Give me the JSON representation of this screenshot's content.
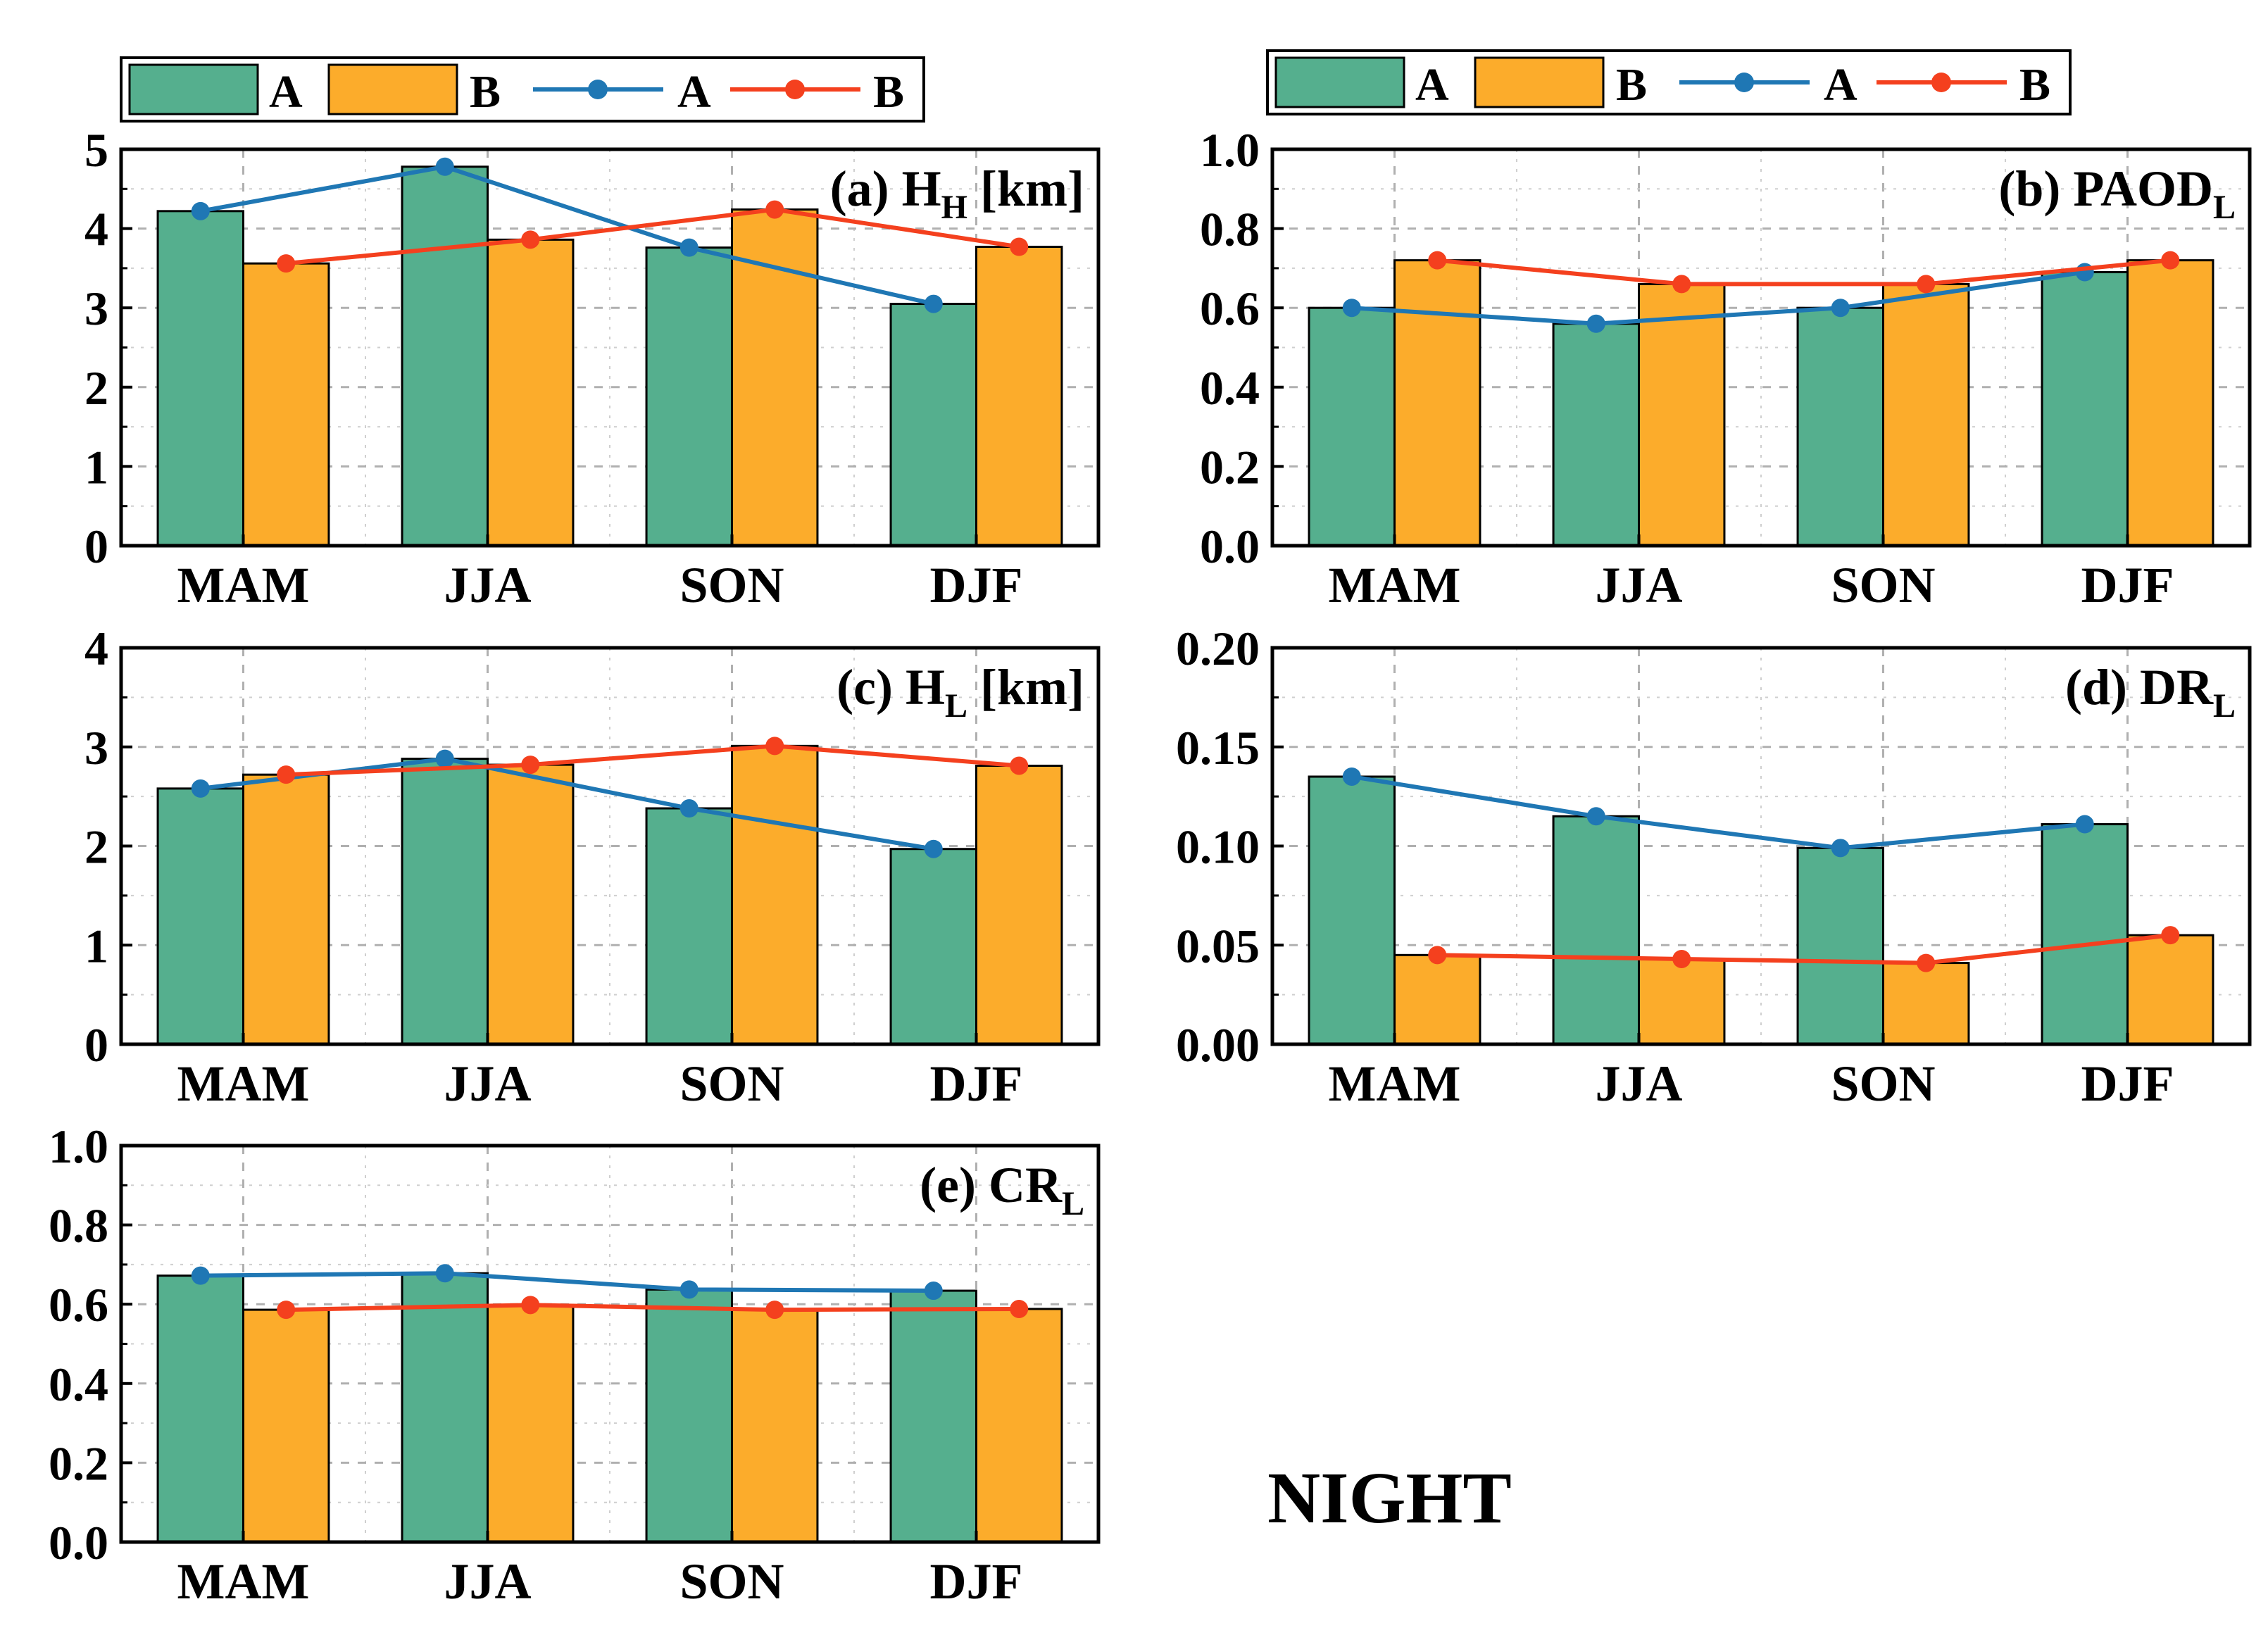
{
  "figure_label": "NIGHT",
  "colors": {
    "bar_a": "#55AF8E",
    "bar_b": "#FCAC2B",
    "line_a": "#1F77B4",
    "line_b": "#F4401E",
    "grid": "#b0b0b0"
  },
  "legend": {
    "bar_a": "A",
    "bar_b": "B",
    "line_a": "A",
    "line_b": "B"
  },
  "chart_data": [
    {
      "id": "a",
      "type": "bar",
      "panel_label": "(a)",
      "var_main": "H",
      "var_sub": "H",
      "unit": "[km]",
      "categories": [
        "MAM",
        "JJA",
        "SON",
        "DJF"
      ],
      "ylim": [
        0,
        5
      ],
      "yticks": [
        0,
        1,
        2,
        3,
        4,
        5
      ],
      "ytick_labels": [
        "0",
        "1",
        "2",
        "3",
        "4",
        "5"
      ],
      "series": [
        {
          "name": "A",
          "kind": "bar",
          "values": [
            4.22,
            4.78,
            3.76,
            3.05
          ]
        },
        {
          "name": "B",
          "kind": "bar",
          "values": [
            3.56,
            3.86,
            4.24,
            3.77
          ]
        },
        {
          "name": "A",
          "kind": "line",
          "values": [
            4.22,
            4.78,
            3.76,
            3.05
          ]
        },
        {
          "name": "B",
          "kind": "line",
          "values": [
            3.56,
            3.86,
            4.24,
            3.77
          ]
        }
      ]
    },
    {
      "id": "b",
      "type": "bar",
      "panel_label": "(b)",
      "var_main": "PAOD",
      "var_sub": "L",
      "unit": "",
      "categories": [
        "MAM",
        "JJA",
        "SON",
        "DJF"
      ],
      "ylim": [
        0,
        1.0
      ],
      "yticks": [
        0,
        0.2,
        0.4,
        0.6,
        0.8,
        1.0
      ],
      "ytick_labels": [
        "0.0",
        "0.2",
        "0.4",
        "0.6",
        "0.8",
        "1.0"
      ],
      "series": [
        {
          "name": "A",
          "kind": "bar",
          "values": [
            0.6,
            0.56,
            0.6,
            0.69
          ]
        },
        {
          "name": "B",
          "kind": "bar",
          "values": [
            0.72,
            0.66,
            0.66,
            0.72
          ]
        },
        {
          "name": "A",
          "kind": "line",
          "values": [
            0.6,
            0.56,
            0.6,
            0.69
          ]
        },
        {
          "name": "B",
          "kind": "line",
          "values": [
            0.72,
            0.66,
            0.66,
            0.72
          ]
        }
      ]
    },
    {
      "id": "c",
      "type": "bar",
      "panel_label": "(c)",
      "var_main": "H",
      "var_sub": "L",
      "unit": "[km]",
      "categories": [
        "MAM",
        "JJA",
        "SON",
        "DJF"
      ],
      "ylim": [
        0,
        4
      ],
      "yticks": [
        0,
        1,
        2,
        3,
        4
      ],
      "ytick_labels": [
        "0",
        "1",
        "2",
        "3",
        "4"
      ],
      "series": [
        {
          "name": "A",
          "kind": "bar",
          "values": [
            2.58,
            2.88,
            2.38,
            1.97
          ]
        },
        {
          "name": "B",
          "kind": "bar",
          "values": [
            2.72,
            2.82,
            3.01,
            2.81
          ]
        },
        {
          "name": "A",
          "kind": "line",
          "values": [
            2.58,
            2.88,
            2.38,
            1.97
          ]
        },
        {
          "name": "B",
          "kind": "line",
          "values": [
            2.72,
            2.82,
            3.01,
            2.81
          ]
        }
      ]
    },
    {
      "id": "d",
      "type": "bar",
      "panel_label": "(d)",
      "var_main": "DR",
      "var_sub": "L",
      "unit": "",
      "categories": [
        "MAM",
        "JJA",
        "SON",
        "DJF"
      ],
      "ylim": [
        0,
        0.2
      ],
      "yticks": [
        0,
        0.05,
        0.1,
        0.15,
        0.2
      ],
      "ytick_labels": [
        "0.00",
        "0.05",
        "0.10",
        "0.15",
        "0.20"
      ],
      "series": [
        {
          "name": "A",
          "kind": "bar",
          "values": [
            0.135,
            0.115,
            0.099,
            0.111
          ]
        },
        {
          "name": "B",
          "kind": "bar",
          "values": [
            0.045,
            0.043,
            0.041,
            0.055
          ]
        },
        {
          "name": "A",
          "kind": "line",
          "values": [
            0.135,
            0.115,
            0.099,
            0.111
          ]
        },
        {
          "name": "B",
          "kind": "line",
          "values": [
            0.045,
            0.043,
            0.041,
            0.055
          ]
        }
      ]
    },
    {
      "id": "e",
      "type": "bar",
      "panel_label": "(e)",
      "var_main": "CR",
      "var_sub": "L",
      "unit": "",
      "categories": [
        "MAM",
        "JJA",
        "SON",
        "DJF"
      ],
      "ylim": [
        0,
        1.0
      ],
      "yticks": [
        0,
        0.2,
        0.4,
        0.6,
        0.8,
        1.0
      ],
      "ytick_labels": [
        "0.0",
        "0.2",
        "0.4",
        "0.6",
        "0.8",
        "1.0"
      ],
      "series": [
        {
          "name": "A",
          "kind": "bar",
          "values": [
            0.672,
            0.678,
            0.637,
            0.634
          ]
        },
        {
          "name": "B",
          "kind": "bar",
          "values": [
            0.586,
            0.598,
            0.586,
            0.588
          ]
        },
        {
          "name": "A",
          "kind": "line",
          "values": [
            0.672,
            0.678,
            0.637,
            0.634
          ]
        },
        {
          "name": "B",
          "kind": "line",
          "values": [
            0.586,
            0.598,
            0.586,
            0.588
          ]
        }
      ]
    }
  ]
}
